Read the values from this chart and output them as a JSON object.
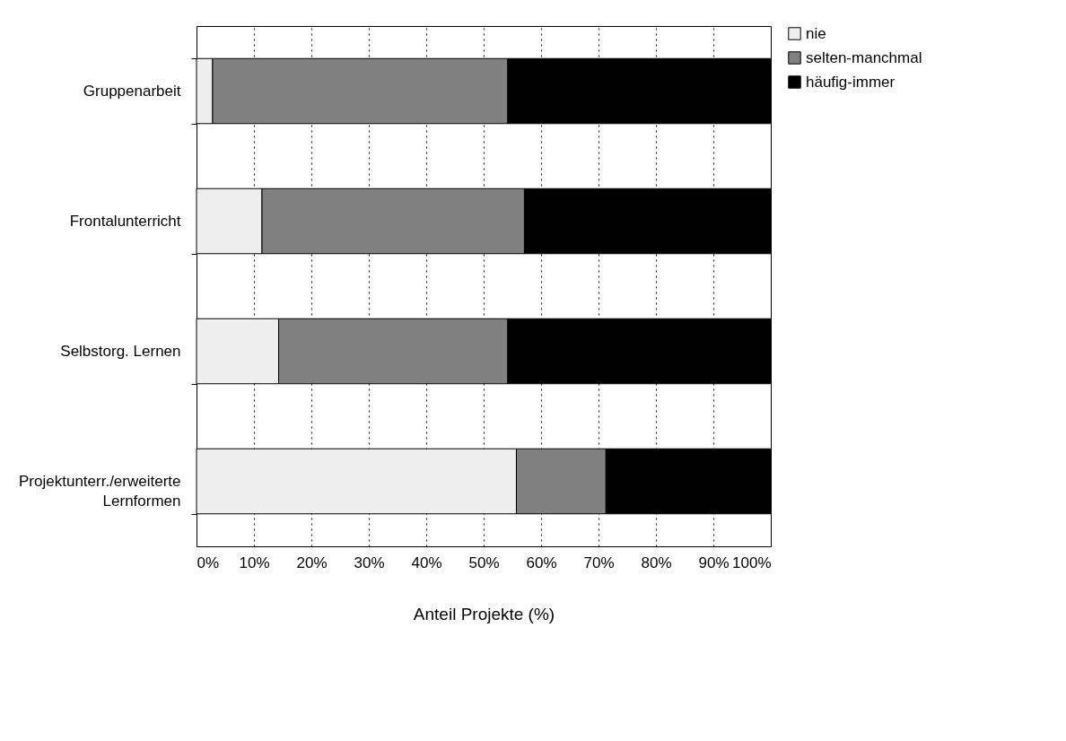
{
  "chart_data": {
    "type": "bar",
    "orientation": "horizontal",
    "stacked": true,
    "categories": [
      "Gruppenarbeit",
      "Frontalunterricht",
      "Selbstorg. Lernen",
      "Projektunterr./erweiterte Lernformen"
    ],
    "series": [
      {
        "name": "nie",
        "color": "#eeeeee",
        "values": [
          2.8,
          11.4,
          14.3,
          55.7
        ]
      },
      {
        "name": "selten-manchmal",
        "color": "#808080",
        "values": [
          51.4,
          45.7,
          39.9,
          15.6
        ]
      },
      {
        "name": "häufig-immer",
        "color": "#000000",
        "values": [
          45.8,
          42.9,
          45.8,
          28.7
        ]
      }
    ],
    "xlabel": "Anteil Projekte (%)",
    "xlim": [
      0,
      100
    ],
    "xticks": [
      {
        "value": 0,
        "label": "0%"
      },
      {
        "value": 10,
        "label": "10%"
      },
      {
        "value": 20,
        "label": "20%"
      },
      {
        "value": 30,
        "label": "30%"
      },
      {
        "value": 40,
        "label": "40%"
      },
      {
        "value": 50,
        "label": "50%"
      },
      {
        "value": 60,
        "label": "60%"
      },
      {
        "value": 70,
        "label": "70%"
      },
      {
        "value": 80,
        "label": "80%"
      },
      {
        "value": 90,
        "label": "90%"
      },
      {
        "value": 100,
        "label": "100%"
      }
    ],
    "grid": "x",
    "legend": "right"
  }
}
